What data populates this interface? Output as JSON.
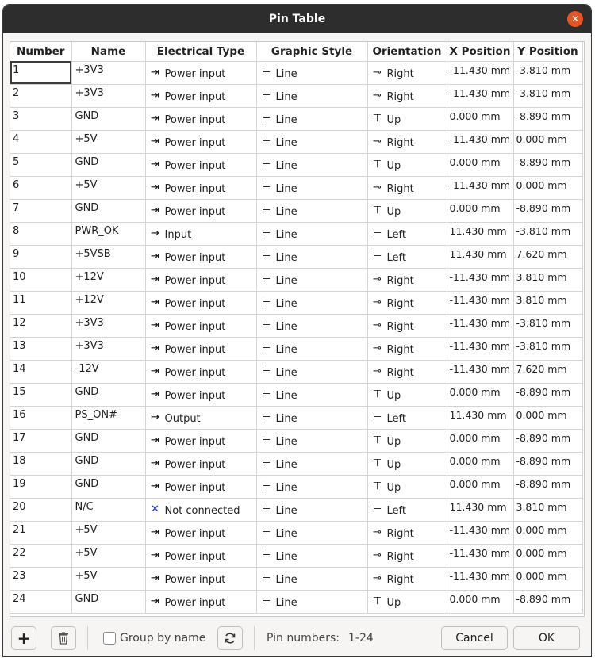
{
  "dialog": {
    "title": "Pin Table",
    "close_icon": "close-icon"
  },
  "columns": [
    "Number",
    "Name",
    "Electrical Type",
    "Graphic Style",
    "Orientation",
    "X Position",
    "Y Position"
  ],
  "icons": {
    "Power input": "⇥",
    "Input": "→",
    "Output": "↦",
    "Not connected": "✕",
    "Line": "⊢",
    "Right": "⊸",
    "Left": "⊢",
    "Up": "⊤"
  },
  "rows": [
    {
      "number": "1",
      "name": "+3V3",
      "etype": "Power input",
      "style": "Line",
      "orient": "Right",
      "x": "-11.430 mm",
      "y": "-3.810 mm"
    },
    {
      "number": "2",
      "name": "+3V3",
      "etype": "Power input",
      "style": "Line",
      "orient": "Right",
      "x": "-11.430 mm",
      "y": "-3.810 mm"
    },
    {
      "number": "3",
      "name": "GND",
      "etype": "Power input",
      "style": "Line",
      "orient": "Up",
      "x": "0.000 mm",
      "y": "-8.890 mm"
    },
    {
      "number": "4",
      "name": "+5V",
      "etype": "Power input",
      "style": "Line",
      "orient": "Right",
      "x": "-11.430 mm",
      "y": "0.000 mm"
    },
    {
      "number": "5",
      "name": "GND",
      "etype": "Power input",
      "style": "Line",
      "orient": "Up",
      "x": "0.000 mm",
      "y": "-8.890 mm"
    },
    {
      "number": "6",
      "name": "+5V",
      "etype": "Power input",
      "style": "Line",
      "orient": "Right",
      "x": "-11.430 mm",
      "y": "0.000 mm"
    },
    {
      "number": "7",
      "name": "GND",
      "etype": "Power input",
      "style": "Line",
      "orient": "Up",
      "x": "0.000 mm",
      "y": "-8.890 mm"
    },
    {
      "number": "8",
      "name": "PWR_OK",
      "etype": "Input",
      "style": "Line",
      "orient": "Left",
      "x": "11.430 mm",
      "y": "-3.810 mm"
    },
    {
      "number": "9",
      "name": "+5VSB",
      "etype": "Power input",
      "style": "Line",
      "orient": "Left",
      "x": "11.430 mm",
      "y": "7.620 mm"
    },
    {
      "number": "10",
      "name": "+12V",
      "etype": "Power input",
      "style": "Line",
      "orient": "Right",
      "x": "-11.430 mm",
      "y": "3.810 mm"
    },
    {
      "number": "11",
      "name": "+12V",
      "etype": "Power input",
      "style": "Line",
      "orient": "Right",
      "x": "-11.430 mm",
      "y": "3.810 mm"
    },
    {
      "number": "12",
      "name": "+3V3",
      "etype": "Power input",
      "style": "Line",
      "orient": "Right",
      "x": "-11.430 mm",
      "y": "-3.810 mm"
    },
    {
      "number": "13",
      "name": "+3V3",
      "etype": "Power input",
      "style": "Line",
      "orient": "Right",
      "x": "-11.430 mm",
      "y": "-3.810 mm"
    },
    {
      "number": "14",
      "name": "-12V",
      "etype": "Power input",
      "style": "Line",
      "orient": "Right",
      "x": "-11.430 mm",
      "y": "7.620 mm"
    },
    {
      "number": "15",
      "name": "GND",
      "etype": "Power input",
      "style": "Line",
      "orient": "Up",
      "x": "0.000 mm",
      "y": "-8.890 mm"
    },
    {
      "number": "16",
      "name": "PS_ON#",
      "etype": "Output",
      "style": "Line",
      "orient": "Left",
      "x": "11.430 mm",
      "y": "0.000 mm"
    },
    {
      "number": "17",
      "name": "GND",
      "etype": "Power input",
      "style": "Line",
      "orient": "Up",
      "x": "0.000 mm",
      "y": "-8.890 mm"
    },
    {
      "number": "18",
      "name": "GND",
      "etype": "Power input",
      "style": "Line",
      "orient": "Up",
      "x": "0.000 mm",
      "y": "-8.890 mm"
    },
    {
      "number": "19",
      "name": "GND",
      "etype": "Power input",
      "style": "Line",
      "orient": "Up",
      "x": "0.000 mm",
      "y": "-8.890 mm"
    },
    {
      "number": "20",
      "name": "N/C",
      "etype": "Not connected",
      "style": "Line",
      "orient": "Left",
      "x": "11.430 mm",
      "y": "3.810 mm"
    },
    {
      "number": "21",
      "name": "+5V",
      "etype": "Power input",
      "style": "Line",
      "orient": "Right",
      "x": "-11.430 mm",
      "y": "0.000 mm"
    },
    {
      "number": "22",
      "name": "+5V",
      "etype": "Power input",
      "style": "Line",
      "orient": "Right",
      "x": "-11.430 mm",
      "y": "0.000 mm"
    },
    {
      "number": "23",
      "name": "+5V",
      "etype": "Power input",
      "style": "Line",
      "orient": "Right",
      "x": "-11.430 mm",
      "y": "0.000 mm"
    },
    {
      "number": "24",
      "name": "GND",
      "etype": "Power input",
      "style": "Line",
      "orient": "Up",
      "x": "0.000 mm",
      "y": "-8.890 mm"
    }
  ],
  "footer": {
    "add_label": "+",
    "delete_icon": "trash-icon",
    "group_by_name_label": "Group by name",
    "group_by_name_checked": false,
    "refresh_icon": "refresh-icon",
    "pin_numbers_label": "Pin numbers:",
    "pin_numbers_value": "1-24",
    "cancel_label": "Cancel",
    "ok_label": "OK"
  },
  "colors": {
    "accent_close": "#e95420",
    "titlebar": "#2d2d2d",
    "nc_icon": "#2233cc"
  }
}
